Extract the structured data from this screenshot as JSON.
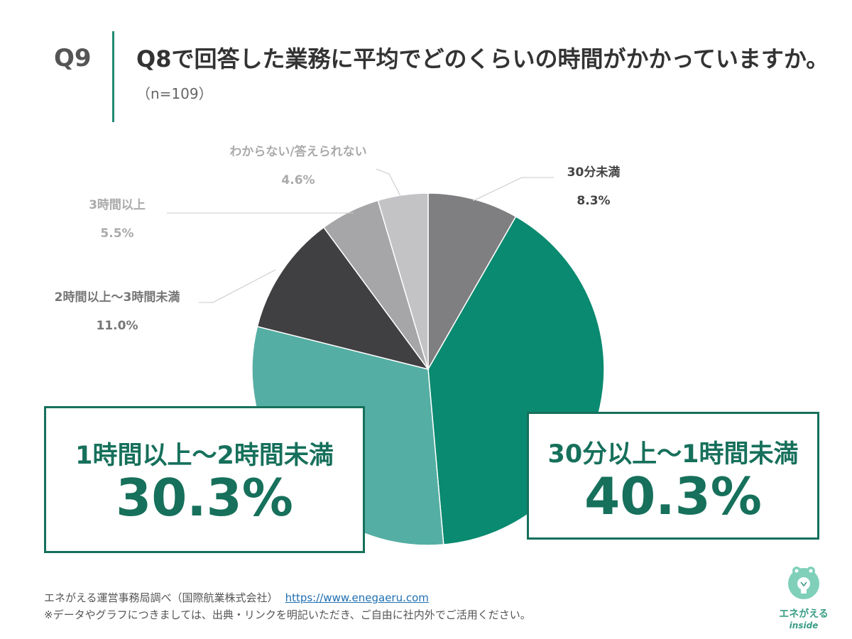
{
  "header": {
    "question_number": "Q9",
    "question_text": "Q8で回答した業務に平均でどのくらいの時間がかかっていますか。",
    "sample": "（n=109）"
  },
  "colors": {
    "accent": "#16705b",
    "divider": "#1f8a72"
  },
  "chart_data": {
    "type": "pie",
    "title": "",
    "start_angle_deg": 0,
    "direction": "clockwise",
    "slices": [
      {
        "label": "30分未満",
        "value_label": "8.3%",
        "value": 8.3,
        "color": "#7f7e80",
        "label_color": "#444444"
      },
      {
        "label": "30分以上～1時間未満",
        "value_label": "40.3%",
        "value": 40.3,
        "color": "#0a8a70",
        "label_color": "#16705b"
      },
      {
        "label": "1時間以上～2時間未満",
        "value_label": "30.3%",
        "value": 30.3,
        "color": "#55aea3",
        "label_color": "#16705b"
      },
      {
        "label": "2時間以上～3時間未満",
        "value_label": "11.0%",
        "value": 11.0,
        "color": "#403f42",
        "label_color": "#777777"
      },
      {
        "label": "3時間以上",
        "value_label": "5.5%",
        "value": 5.5,
        "color": "#a6a5a8",
        "label_color": "#aaaaaa"
      },
      {
        "label": "わからない/答えられない",
        "value_label": "4.6%",
        "value": 4.6,
        "color": "#c3c2c5",
        "label_color": "#aaaaaa"
      }
    ]
  },
  "callouts": {
    "left": {
      "label": "1時間以上～2時間未満",
      "value": "30.3%"
    },
    "right": {
      "label": "30分以上～1時間未満",
      "value": "40.3%"
    }
  },
  "footer": {
    "source": "エネがえる運営事務局調べ（国際航業株式会社）",
    "url": "https://www.enegaeru.com",
    "note": "※データやグラフにつきましては、出典・リンクを明記いただき、ご自由に社内外でご活用ください。"
  },
  "logo": {
    "name": "エネがえる",
    "sub": "inside",
    "icon": "lightbulb-frog-icon"
  }
}
